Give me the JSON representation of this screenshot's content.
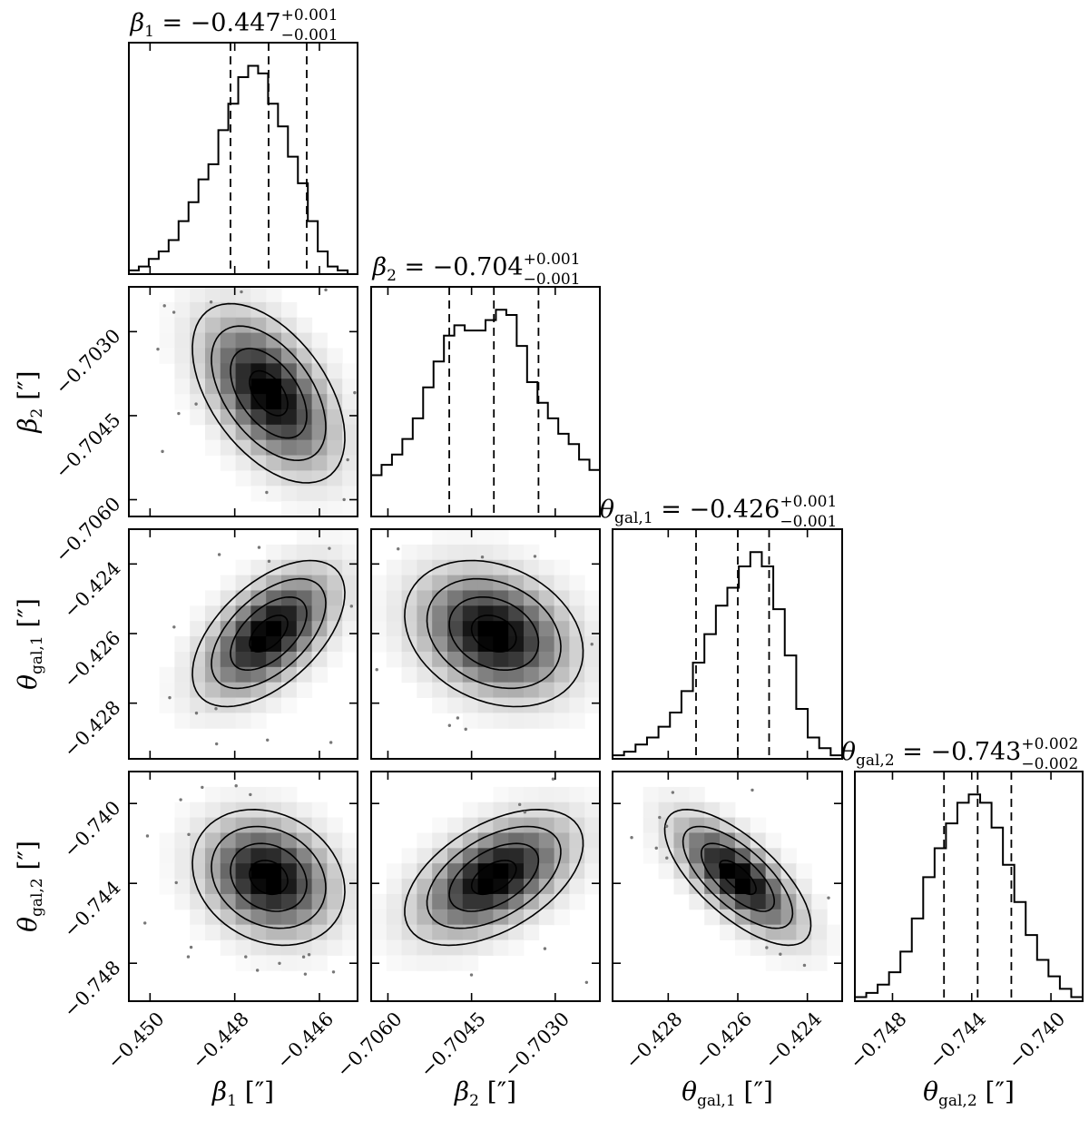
{
  "chart_data": {
    "type": "corner",
    "parameters": [
      {
        "symbol": "β",
        "subscript": "1",
        "axis_label": "β1 [″]",
        "title_prefix": "β1 = ",
        "median": "−0.447",
        "plus": "+0.001",
        "minus": "−0.001",
        "range": [
          -0.4505,
          -0.4451
        ],
        "ticks": [
          -0.45,
          -0.448,
          -0.446
        ],
        "tick_labels": [
          "−0.450",
          "−0.448",
          "−0.446"
        ],
        "quantiles": [
          -0.4481,
          -0.4472,
          -0.4463
        ],
        "hist": [
          1,
          2,
          4,
          6,
          9,
          14,
          19,
          25,
          29,
          38,
          45,
          52,
          55,
          53,
          45,
          39,
          31,
          24,
          14,
          6,
          2,
          1,
          0
        ]
      },
      {
        "symbol": "β",
        "subscript": "2",
        "axis_label": "β2 [″]",
        "title_prefix": "β2 = ",
        "median": "−0.704",
        "plus": "+0.001",
        "minus": "−0.001",
        "range": [
          -0.7063,
          -0.7022
        ],
        "ticks": [
          -0.706,
          -0.7045,
          -0.703
        ],
        "tick_labels": [
          "−0.7060",
          "−0.7045",
          "−0.7030"
        ],
        "quantiles": [
          -0.7049,
          -0.7041,
          -0.7033
        ],
        "hist": [
          8,
          10,
          12,
          15,
          19,
          25,
          30,
          35,
          37,
          36,
          36,
          38,
          40,
          39,
          33,
          26,
          22,
          19,
          16,
          14,
          11,
          9
        ]
      },
      {
        "symbol": "θ",
        "subscript": "gal,1",
        "axis_label": "θgal,1 [″]",
        "title_prefix": "θgal,1 = ",
        "median": "−0.426",
        "plus": "+0.001",
        "minus": "−0.001",
        "range": [
          -0.4296,
          -0.423
        ],
        "ticks": [
          -0.428,
          -0.426,
          -0.424
        ],
        "tick_labels": [
          "−0.428",
          "−0.426",
          "−0.424"
        ],
        "quantiles": [
          -0.4272,
          -0.426,
          -0.4251
        ],
        "hist": [
          1,
          2,
          4,
          6,
          9,
          13,
          19,
          27,
          35,
          43,
          48,
          54,
          58,
          54,
          42,
          29,
          14,
          6,
          3,
          1
        ]
      },
      {
        "symbol": "θ",
        "subscript": "gal,2",
        "axis_label": "θgal,2 [″]",
        "title_prefix": "θgal,2 = ",
        "median": "−0.743",
        "plus": "+0.002",
        "minus": "−0.002",
        "range": [
          -0.7499,
          -0.7384
        ],
        "ticks": [
          -0.748,
          -0.744,
          -0.74
        ],
        "tick_labels": [
          "−0.748",
          "−0.744",
          "−0.740"
        ],
        "quantiles": [
          -0.7454,
          -0.7437,
          -0.742
        ],
        "hist": [
          1,
          2,
          4,
          7,
          12,
          20,
          30,
          37,
          43,
          48,
          50,
          48,
          42,
          33,
          24,
          16,
          10,
          6,
          3,
          1
        ]
      }
    ],
    "y_tick_labels": [
      null,
      [
        "−0.7030",
        "−0.7045",
        "−0.7060"
      ],
      [
        "−0.424",
        "−0.426",
        "−0.428"
      ],
      [
        "−0.740",
        "−0.744",
        "−0.748"
      ]
    ],
    "correlations": [
      [
        null,
        null,
        null,
        null
      ],
      [
        -0.5,
        null,
        null,
        null
      ],
      [
        0.55,
        -0.25,
        null,
        null
      ],
      [
        -0.2,
        0.5,
        -0.7,
        null
      ]
    ],
    "unit": "″",
    "grid": false
  }
}
